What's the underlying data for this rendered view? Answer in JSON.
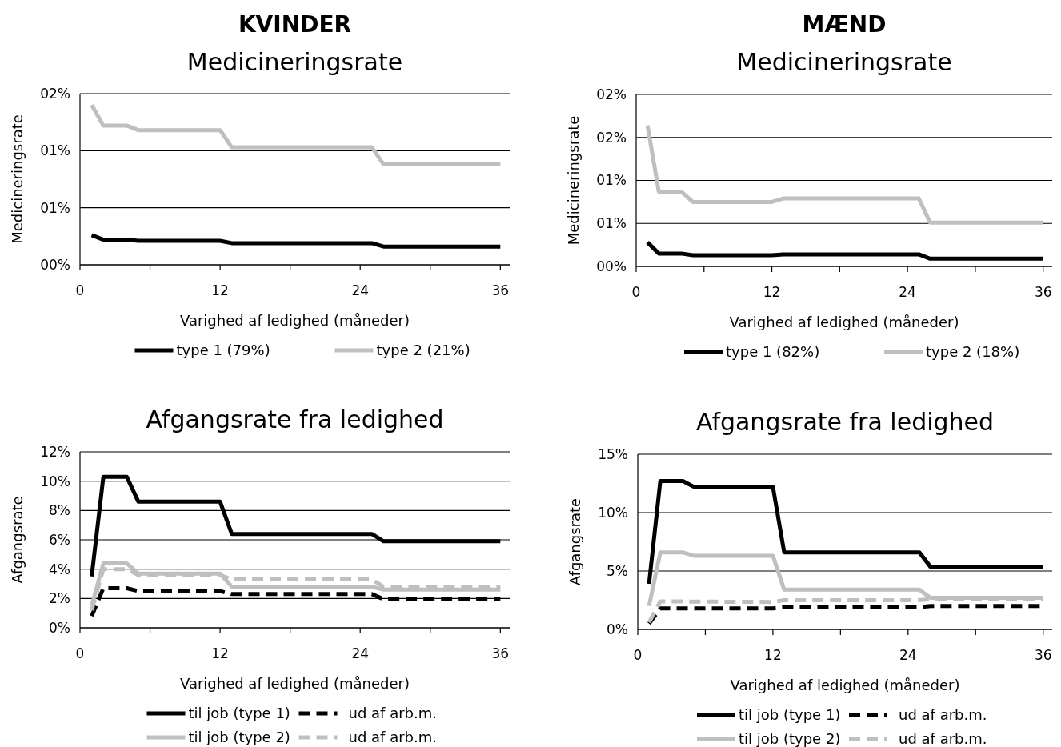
{
  "chart_data": [
    {
      "type": "line",
      "title": "KVINDER",
      "subtitle": "Medicineringsrate",
      "xlabel": "Varighed af ledighed (måneder)",
      "ylabel": "Medicineringsrate",
      "xlim": [
        0,
        36.8
      ],
      "xticks": [
        0,
        {
          "value": 6,
          "label": null
        },
        12,
        {
          "value": 18,
          "label": null
        },
        24,
        {
          "value": 30,
          "label": null
        },
        36
      ],
      "ylim": [
        0,
        1.5
      ],
      "yticks": [
        {
          "value": 0,
          "label": "00%"
        },
        {
          "value": 0.5,
          "label": "01%"
        },
        {
          "value": 1,
          "label": "01%"
        },
        {
          "value": 1.5,
          "label": "02%"
        }
      ],
      "grid": "y",
      "legend": "bottom",
      "series": [
        {
          "name": "type 1 (79%)",
          "color": "#000000",
          "line_style": "solid",
          "x": [
            1,
            2,
            4,
            5,
            12,
            13,
            25,
            26,
            36
          ],
          "values": [
            0.26,
            0.22,
            0.22,
            0.21,
            0.21,
            0.19,
            0.19,
            0.16,
            0.16
          ]
        },
        {
          "name": "type 2 (21%)",
          "color": "#bfbfbf",
          "line_style": "solid",
          "x": [
            1,
            2,
            4,
            5,
            12,
            13,
            25,
            26,
            36
          ],
          "values": [
            1.4,
            1.22,
            1.22,
            1.18,
            1.18,
            1.03,
            1.03,
            0.88,
            0.88
          ]
        }
      ]
    },
    {
      "type": "line",
      "title": "MÆND",
      "subtitle": "Medicineringsrate",
      "xlabel": "Varighed af ledighed (måneder)",
      "ylabel": "Medicineringsrate",
      "xlim": [
        0,
        36.8
      ],
      "xticks": [
        0,
        {
          "value": 6,
          "label": null
        },
        12,
        {
          "value": 18,
          "label": null
        },
        24,
        {
          "value": 30,
          "label": null
        },
        36
      ],
      "ylim": [
        0,
        2
      ],
      "yticks": [
        {
          "value": 0,
          "label": "00%"
        },
        {
          "value": 0.5,
          "label": "01%"
        },
        {
          "value": 1,
          "label": "01%"
        },
        {
          "value": 1.5,
          "label": "02%"
        },
        {
          "value": 2,
          "label": "02%"
        }
      ],
      "grid": "y",
      "legend": "bottom",
      "series": [
        {
          "name": "type 1 (82%)",
          "color": "#000000",
          "line_style": "solid",
          "x": [
            1,
            2,
            4,
            5,
            12,
            13,
            25,
            26,
            36
          ],
          "values": [
            0.28,
            0.15,
            0.15,
            0.13,
            0.13,
            0.14,
            0.14,
            0.09,
            0.09
          ]
        },
        {
          "name": "type 2 (18%)",
          "color": "#bfbfbf",
          "line_style": "solid",
          "x": [
            1,
            2,
            4,
            5,
            12,
            13,
            25,
            26,
            36
          ],
          "values": [
            1.64,
            0.87,
            0.87,
            0.75,
            0.75,
            0.79,
            0.79,
            0.51,
            0.51
          ]
        }
      ]
    },
    {
      "type": "line",
      "title": "Afgangsrate fra ledighed",
      "xlabel": "Varighed af ledighed (måneder)",
      "ylabel": "Afgangsrate",
      "xlim": [
        0,
        36.8
      ],
      "xticks": [
        0,
        {
          "value": 6,
          "label": null
        },
        12,
        {
          "value": 18,
          "label": null
        },
        24,
        {
          "value": 30,
          "label": null
        },
        36
      ],
      "ylim": [
        0,
        12
      ],
      "yticks": [
        {
          "value": 0,
          "label": "0%"
        },
        {
          "value": 2,
          "label": "2%"
        },
        {
          "value": 4,
          "label": "4%"
        },
        {
          "value": 6,
          "label": "6%"
        },
        {
          "value": 8,
          "label": "8%"
        },
        {
          "value": 10,
          "label": "10%"
        },
        {
          "value": 12,
          "label": "12%"
        }
      ],
      "grid": "y",
      "legend": "bottom",
      "series": [
        {
          "name": "til job (type 1)",
          "color": "#000000",
          "line_style": "solid",
          "x": [
            1,
            2,
            4,
            5,
            12,
            13,
            25,
            26,
            36
          ],
          "values": [
            3.5,
            10.3,
            10.3,
            8.6,
            8.6,
            6.4,
            6.4,
            5.9,
            5.9
          ]
        },
        {
          "name": "ud af arb.m.",
          "color": "#000000",
          "line_style": "dashed",
          "x": [
            1,
            2,
            4,
            5,
            12,
            13,
            25,
            26,
            36
          ],
          "values": [
            0.8,
            2.7,
            2.7,
            2.5,
            2.5,
            2.3,
            2.3,
            1.95,
            1.95
          ]
        },
        {
          "name": "til job (type 2)",
          "color": "#bfbfbf",
          "line_style": "solid",
          "x": [
            1,
            2,
            4,
            5,
            12,
            13,
            25,
            26,
            36
          ],
          "values": [
            1.5,
            4.4,
            4.4,
            3.7,
            3.7,
            2.8,
            2.8,
            2.6,
            2.6
          ]
        },
        {
          "name": "ud af arb.m.",
          "color": "#bfbfbf",
          "line_style": "dashed",
          "x": [
            1,
            2,
            4,
            5,
            12,
            13,
            25,
            26,
            36
          ],
          "values": [
            1.2,
            4,
            4,
            3.6,
            3.6,
            3.3,
            3.3,
            2.8,
            2.8
          ]
        }
      ]
    },
    {
      "type": "line",
      "title": "Afgangsrate fra ledighed",
      "xlabel": "Varighed af ledighed (måneder)",
      "ylabel": "Afgangsrate",
      "xlim": [
        0,
        36.8
      ],
      "xticks": [
        0,
        {
          "value": 6,
          "label": null
        },
        12,
        {
          "value": 18,
          "label": null
        },
        24,
        {
          "value": 30,
          "label": null
        },
        36
      ],
      "ylim": [
        0,
        15
      ],
      "yticks": [
        {
          "value": 0,
          "label": "0%"
        },
        {
          "value": 5,
          "label": "5%"
        },
        {
          "value": 10,
          "label": "10%"
        },
        {
          "value": 15,
          "label": "15%"
        }
      ],
      "grid": "y",
      "legend": "bottom",
      "series": [
        {
          "name": "til job (type 1)",
          "color": "#000000",
          "line_style": "solid",
          "x": [
            1,
            2,
            4,
            5,
            12,
            13,
            25,
            26,
            36
          ],
          "values": [
            3.9,
            12.7,
            12.7,
            12.2,
            12.2,
            6.6,
            6.6,
            5.35,
            5.35
          ]
        },
        {
          "name": "ud af arb.m.",
          "color": "#000000",
          "line_style": "dashed",
          "x": [
            1,
            2,
            12,
            13,
            25,
            26,
            36
          ],
          "values": [
            0.5,
            1.8,
            1.8,
            1.9,
            1.9,
            2,
            2
          ]
        },
        {
          "name": "til job (type 2)",
          "color": "#bfbfbf",
          "line_style": "solid",
          "x": [
            1,
            2,
            4,
            5,
            12,
            13,
            25,
            26,
            36
          ],
          "values": [
            2,
            6.6,
            6.6,
            6.3,
            6.3,
            3.4,
            3.4,
            2.7,
            2.7
          ]
        },
        {
          "name": "ud af arb.m.",
          "color": "#bfbfbf",
          "line_style": "dashed",
          "x": [
            1,
            2,
            12,
            13,
            25,
            26,
            36
          ],
          "values": [
            0.6,
            2.4,
            2.35,
            2.5,
            2.5,
            2.6,
            2.6
          ]
        }
      ]
    }
  ]
}
